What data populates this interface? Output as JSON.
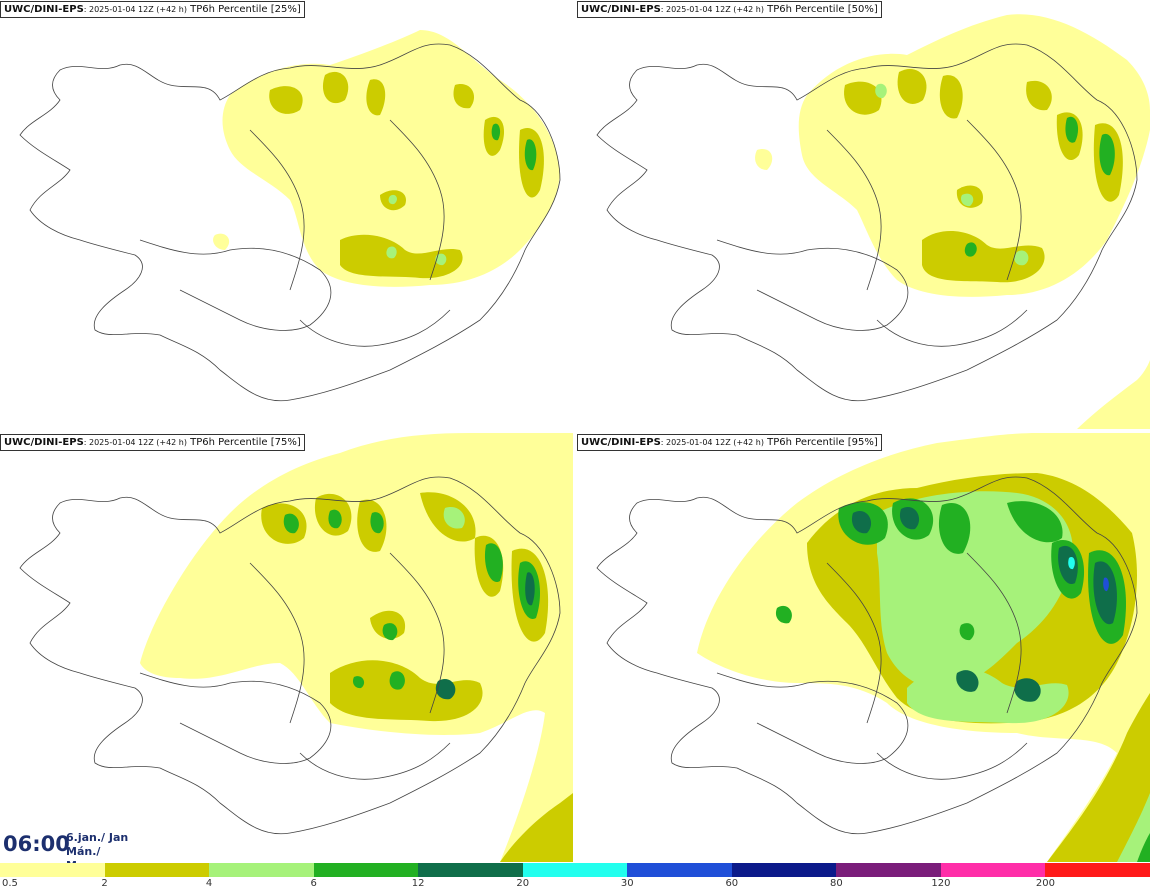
{
  "panels": [
    {
      "source": "UWC/DINI-EPS",
      "run": ": 2025-01-04 12Z (+42 h)",
      "product": " TP6h Percentile [25%]"
    },
    {
      "source": "UWC/DINI-EPS",
      "run": ": 2025-01-04 12Z (+42 h)",
      "product": " TP6h Percentile [50%]"
    },
    {
      "source": "UWC/DINI-EPS",
      "run": ": 2025-01-04 12Z (+42 h)",
      "product": " TP6h Percentile [75%]"
    },
    {
      "source": "UWC/DINI-EPS",
      "run": ": 2025-01-04 12Z (+42 h)",
      "product": " TP6h Percentile [95%]"
    }
  ],
  "valid_time": {
    "time": "06:00",
    "date_line1": "6.jan./ Jan",
    "date_line2": "Mán./ Mon"
  },
  "legend": {
    "colors": [
      "#ffff99",
      "#cccc00",
      "#a6f27a",
      "#22b022",
      "#0f6e4a",
      "#22ffee",
      "#1f4fd8",
      "#0b1a8a",
      "#7a1d7a",
      "#ff2da8",
      "#ff1a1a"
    ],
    "labels": [
      "0.5",
      "2",
      "4",
      "6",
      "12",
      "20",
      "30",
      "60",
      "80",
      "120",
      "200"
    ]
  }
}
